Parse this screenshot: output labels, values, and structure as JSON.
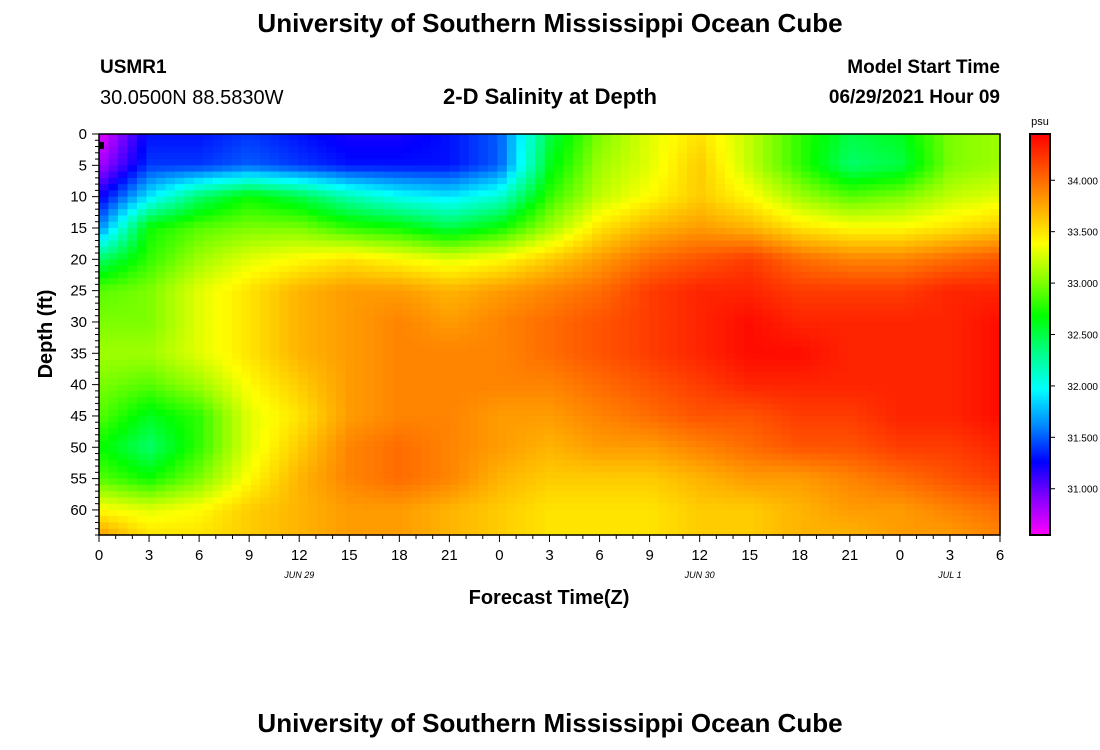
{
  "header": {
    "title": "University of Southern Mississippi Ocean Cube",
    "station_id": "USMR1",
    "coordinates": "30.0500N  88.5830W",
    "subtitle": "2-D Salinity at Depth",
    "model_start_label": "Model Start Time",
    "model_start_value": "06/29/2021 Hour 09"
  },
  "footer": {
    "title": "University of Southern Mississippi Ocean Cube"
  },
  "chart_data": {
    "type": "heatmap",
    "title": "2-D Salinity at Depth",
    "xlabel": "Forecast Time(Z)",
    "ylabel": "Depth (ft)",
    "x_unit": "hours from 00Z Jun 29",
    "xlim": [
      0,
      54
    ],
    "x_ticks": [
      0,
      3,
      6,
      9,
      12,
      15,
      18,
      21,
      24,
      27,
      30,
      33,
      36,
      39,
      42,
      45,
      48,
      51,
      54
    ],
    "x_tick_labels": [
      "0",
      "3",
      "6",
      "9",
      "12",
      "15",
      "18",
      "21",
      "0",
      "3",
      "6",
      "9",
      "12",
      "15",
      "18",
      "21",
      "0",
      "3",
      "6"
    ],
    "date_labels": [
      {
        "x": 12,
        "label": "JUN 29"
      },
      {
        "x": 36,
        "label": "JUN 30"
      },
      {
        "x": 51,
        "label": "JUL 1"
      }
    ],
    "ylim": [
      0,
      64
    ],
    "y_ticks": [
      0,
      5,
      10,
      15,
      20,
      25,
      30,
      35,
      40,
      45,
      50,
      55,
      60
    ],
    "colorbar": {
      "unit": "psu",
      "range": [
        30.55,
        34.45
      ],
      "tick_values": [
        31.0,
        31.5,
        32.0,
        32.5,
        33.0,
        33.5,
        34.0
      ],
      "tick_labels": [
        "31.000",
        "31.500",
        "32.000",
        "32.500",
        "33.000",
        "33.500",
        "34.000"
      ],
      "colors": [
        "#ff00ff",
        "#8800ff",
        "#0000ff",
        "#0088ff",
        "#00ffff",
        "#00ff88",
        "#00ff00",
        "#88ff00",
        "#ffff00",
        "#ffaa00",
        "#ff5500",
        "#ff0000"
      ]
    },
    "salinity_grid": {
      "x_hours": [
        0,
        3,
        6,
        9,
        12,
        15,
        18,
        21,
        24,
        27,
        30,
        33,
        36,
        39,
        42,
        45,
        48,
        51,
        54
      ],
      "depths_ft": [
        0,
        5,
        10,
        15,
        20,
        25,
        30,
        35,
        40,
        45,
        50,
        55,
        60,
        64
      ],
      "values_psu": [
        [
          30.6,
          31.3,
          31.3,
          31.4,
          31.3,
          31.2,
          31.2,
          31.3,
          31.5,
          32.5,
          33.0,
          33.3,
          33.5,
          33.2,
          32.8,
          32.5,
          32.6,
          33.0,
          33.1
        ],
        [
          30.8,
          31.4,
          31.4,
          31.5,
          31.4,
          31.3,
          31.3,
          31.3,
          31.5,
          32.6,
          33.1,
          33.3,
          33.6,
          33.2,
          32.8,
          32.4,
          32.5,
          33.0,
          33.1
        ],
        [
          31.2,
          31.9,
          32.4,
          32.7,
          32.5,
          32.2,
          32.0,
          31.9,
          32.1,
          32.8,
          33.2,
          33.4,
          33.6,
          33.4,
          33.1,
          32.9,
          33.0,
          33.2,
          33.3
        ],
        [
          31.6,
          32.7,
          32.9,
          33.0,
          33.0,
          32.8,
          32.7,
          32.5,
          32.7,
          33.1,
          33.5,
          33.7,
          33.8,
          33.7,
          33.5,
          33.4,
          33.4,
          33.5,
          33.6
        ],
        [
          32.4,
          32.8,
          33.1,
          33.3,
          33.4,
          33.5,
          33.4,
          33.3,
          33.4,
          33.6,
          33.8,
          34.0,
          34.1,
          34.2,
          34.0,
          33.9,
          33.9,
          34.0,
          34.1
        ],
        [
          32.9,
          33.0,
          33.3,
          33.5,
          33.7,
          33.8,
          33.8,
          33.7,
          33.8,
          33.9,
          34.0,
          34.2,
          34.3,
          34.3,
          34.2,
          34.2,
          34.2,
          34.3,
          34.3
        ],
        [
          33.0,
          33.0,
          33.3,
          33.5,
          33.7,
          33.8,
          33.9,
          33.8,
          33.9,
          34.0,
          34.1,
          34.2,
          34.3,
          34.4,
          34.3,
          34.3,
          34.3,
          34.3,
          34.4
        ],
        [
          33.1,
          33.1,
          33.3,
          33.5,
          33.7,
          33.8,
          33.9,
          33.9,
          33.9,
          34.0,
          34.1,
          34.2,
          34.3,
          34.4,
          34.4,
          34.3,
          34.3,
          34.3,
          34.4
        ],
        [
          33.0,
          32.9,
          33.1,
          33.4,
          33.6,
          33.8,
          33.9,
          33.9,
          33.9,
          33.9,
          34.0,
          34.1,
          34.2,
          34.3,
          34.3,
          34.3,
          34.3,
          34.3,
          34.4
        ],
        [
          32.9,
          32.6,
          32.8,
          33.3,
          33.5,
          33.8,
          33.9,
          33.9,
          33.8,
          33.8,
          33.9,
          34.0,
          34.1,
          34.1,
          34.2,
          34.2,
          34.3,
          34.3,
          34.4
        ],
        [
          32.7,
          32.4,
          32.8,
          33.3,
          33.6,
          33.9,
          34.0,
          33.9,
          33.8,
          33.7,
          33.8,
          33.8,
          33.9,
          34.0,
          34.1,
          34.1,
          34.2,
          34.2,
          34.3
        ],
        [
          32.9,
          32.7,
          33.0,
          33.4,
          33.7,
          33.9,
          34.0,
          33.9,
          33.7,
          33.6,
          33.6,
          33.6,
          33.7,
          33.8,
          33.8,
          33.9,
          34.0,
          34.1,
          34.2
        ],
        [
          33.4,
          33.3,
          33.4,
          33.6,
          33.7,
          33.8,
          33.8,
          33.7,
          33.6,
          33.5,
          33.5,
          33.5,
          33.6,
          33.6,
          33.7,
          33.8,
          33.8,
          33.9,
          34.0
        ],
        [
          33.8,
          33.5,
          33.5,
          33.6,
          33.7,
          33.8,
          33.8,
          33.7,
          33.6,
          33.5,
          33.5,
          33.5,
          33.6,
          33.6,
          33.7,
          33.7,
          33.8,
          33.8,
          33.9
        ]
      ]
    }
  }
}
